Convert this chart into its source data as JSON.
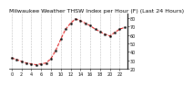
{
  "title": "Milwaukee Weather THSW Index per Hour (F) (Last 24 Hours)",
  "title_fontsize": 4.5,
  "x_values": [
    0,
    1,
    2,
    3,
    4,
    5,
    6,
    7,
    8,
    9,
    10,
    11,
    12,
    13,
    14,
    15,
    16,
    17,
    18,
    19,
    20,
    21,
    22,
    23
  ],
  "y_values": [
    33,
    31,
    29,
    27,
    26,
    25,
    26,
    27,
    32,
    42,
    55,
    67,
    74,
    79,
    77,
    74,
    71,
    67,
    64,
    61,
    59,
    63,
    67,
    69
  ],
  "line_color": "#dd0000",
  "marker_color": "#000000",
  "marker_size": 1.5,
  "line_style": "--",
  "line_width": 0.7,
  "grid_color": "#bbbbbb",
  "grid_style": "--",
  "grid_linewidth": 0.4,
  "background_color": "#ffffff",
  "ylim": [
    20,
    85
  ],
  "yticks": [
    20,
    30,
    40,
    50,
    60,
    70,
    80
  ],
  "ytick_labels": [
    "20",
    "30",
    "40",
    "50",
    "60",
    "70",
    "80"
  ],
  "xlim": [
    -0.5,
    23.5
  ],
  "xtick_positions": [
    0,
    2,
    4,
    6,
    8,
    10,
    12,
    14,
    16,
    18,
    20,
    22
  ],
  "xtick_labels": [
    "0",
    "2",
    "4",
    "6",
    "8",
    "10",
    "12",
    "14",
    "16",
    "18",
    "20",
    "22"
  ],
  "grid_x_positions": [
    0,
    2,
    4,
    6,
    8,
    10,
    12,
    14,
    16,
    18,
    20,
    22
  ],
  "tick_fontsize": 3.5,
  "spine_color": "#000000"
}
